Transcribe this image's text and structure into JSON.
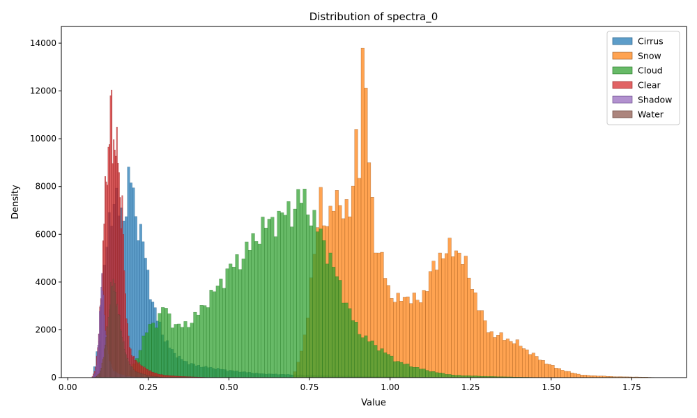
{
  "chart_data": {
    "type": "histogram",
    "title": "Distribution of spectra_0",
    "xlabel": "Value",
    "ylabel": "Density",
    "xlim": [
      -0.02,
      1.92
    ],
    "ylim": [
      0,
      14700
    ],
    "xticks": [
      0.0,
      0.25,
      0.5,
      0.75,
      1.0,
      1.25,
      1.5,
      1.75
    ],
    "xtick_labels": [
      "0.00",
      "0.25",
      "0.50",
      "0.75",
      "1.00",
      "1.25",
      "1.50",
      "1.75"
    ],
    "yticks": [
      0,
      2000,
      4000,
      6000,
      8000,
      10000,
      12000,
      14000
    ],
    "ytick_labels": [
      "0",
      "2000",
      "4000",
      "6000",
      "8000",
      "10000",
      "12000",
      "14000"
    ],
    "grid": false,
    "legend_position": "top-right",
    "series": [
      {
        "name": "Cirrus",
        "color": "#1f77b4",
        "edge": "#174f7a",
        "bin_width": 0.0075,
        "points": [
          [
            0.08,
            150
          ],
          [
            0.1,
            1800
          ],
          [
            0.115,
            4800
          ],
          [
            0.13,
            6800
          ],
          [
            0.15,
            7400
          ],
          [
            0.165,
            6800
          ],
          [
            0.18,
            7000
          ],
          [
            0.19,
            8200
          ],
          [
            0.2,
            8400
          ],
          [
            0.21,
            6800
          ],
          [
            0.22,
            6300
          ],
          [
            0.23,
            5800
          ],
          [
            0.24,
            5200
          ],
          [
            0.25,
            4200
          ],
          [
            0.26,
            3300
          ],
          [
            0.27,
            2800
          ],
          [
            0.28,
            2400
          ],
          [
            0.29,
            2100
          ],
          [
            0.3,
            1600
          ],
          [
            0.32,
            1200
          ],
          [
            0.34,
            900
          ],
          [
            0.36,
            700
          ],
          [
            0.4,
            500
          ],
          [
            0.5,
            300
          ],
          [
            0.6,
            160
          ],
          [
            0.8,
            80
          ],
          [
            1.0,
            40
          ],
          [
            1.2,
            10
          ],
          [
            1.3,
            0
          ]
        ]
      },
      {
        "name": "Snow",
        "color": "#ff7f0e",
        "edge": "#8a4a12",
        "bin_width": 0.01,
        "points": [
          [
            0.7,
            0
          ],
          [
            0.72,
            900
          ],
          [
            0.74,
            2000
          ],
          [
            0.76,
            4500
          ],
          [
            0.77,
            5600
          ],
          [
            0.78,
            8200
          ],
          [
            0.79,
            7200
          ],
          [
            0.8,
            6000
          ],
          [
            0.81,
            6300
          ],
          [
            0.82,
            7000
          ],
          [
            0.83,
            8300
          ],
          [
            0.84,
            7300
          ],
          [
            0.85,
            7200
          ],
          [
            0.86,
            6400
          ],
          [
            0.87,
            7100
          ],
          [
            0.88,
            7100
          ],
          [
            0.89,
            9600
          ],
          [
            0.9,
            10700
          ],
          [
            0.905,
            8800
          ],
          [
            0.91,
            12000
          ],
          [
            0.92,
            13300
          ],
          [
            0.93,
            10700
          ],
          [
            0.94,
            8800
          ],
          [
            0.95,
            5800
          ],
          [
            0.96,
            5200
          ],
          [
            0.97,
            4800
          ],
          [
            0.98,
            5000
          ],
          [
            0.99,
            4100
          ],
          [
            1.0,
            3500
          ],
          [
            1.02,
            3100
          ],
          [
            1.04,
            3500
          ],
          [
            1.06,
            3300
          ],
          [
            1.08,
            3200
          ],
          [
            1.1,
            3400
          ],
          [
            1.12,
            4000
          ],
          [
            1.14,
            4800
          ],
          [
            1.16,
            5200
          ],
          [
            1.18,
            5200
          ],
          [
            1.19,
            5400
          ],
          [
            1.2,
            5400
          ],
          [
            1.22,
            5200
          ],
          [
            1.24,
            4400
          ],
          [
            1.26,
            3700
          ],
          [
            1.28,
            2800
          ],
          [
            1.3,
            2100
          ],
          [
            1.32,
            1800
          ],
          [
            1.35,
            1700
          ],
          [
            1.4,
            1400
          ],
          [
            1.45,
            900
          ],
          [
            1.5,
            500
          ],
          [
            1.55,
            250
          ],
          [
            1.6,
            100
          ],
          [
            1.7,
            40
          ],
          [
            1.8,
            20
          ],
          [
            1.83,
            0
          ]
        ]
      },
      {
        "name": "Cloud",
        "color": "#2ca02c",
        "edge": "#1c6e1c",
        "bin_width": 0.01,
        "points": [
          [
            0.18,
            0
          ],
          [
            0.2,
            400
          ],
          [
            0.22,
            1000
          ],
          [
            0.24,
            1800
          ],
          [
            0.26,
            2300
          ],
          [
            0.28,
            2300
          ],
          [
            0.3,
            3100
          ],
          [
            0.32,
            2400
          ],
          [
            0.34,
            2100
          ],
          [
            0.36,
            2200
          ],
          [
            0.38,
            2300
          ],
          [
            0.4,
            2600
          ],
          [
            0.42,
            3000
          ],
          [
            0.44,
            3300
          ],
          [
            0.46,
            3700
          ],
          [
            0.48,
            4100
          ],
          [
            0.5,
            4500
          ],
          [
            0.52,
            4800
          ],
          [
            0.54,
            5000
          ],
          [
            0.56,
            5400
          ],
          [
            0.58,
            5800
          ],
          [
            0.6,
            6200
          ],
          [
            0.62,
            6400
          ],
          [
            0.64,
            6600
          ],
          [
            0.66,
            6700
          ],
          [
            0.68,
            6900
          ],
          [
            0.7,
            7000
          ],
          [
            0.72,
            7600
          ],
          [
            0.74,
            7300
          ],
          [
            0.76,
            6700
          ],
          [
            0.78,
            6100
          ],
          [
            0.8,
            5500
          ],
          [
            0.82,
            4800
          ],
          [
            0.84,
            4000
          ],
          [
            0.86,
            3300
          ],
          [
            0.88,
            2600
          ],
          [
            0.9,
            2000
          ],
          [
            0.92,
            1700
          ],
          [
            0.94,
            1500
          ],
          [
            0.96,
            1300
          ],
          [
            0.98,
            1100
          ],
          [
            1.0,
            900
          ],
          [
            1.02,
            700
          ],
          [
            1.05,
            550
          ],
          [
            1.1,
            350
          ],
          [
            1.15,
            200
          ],
          [
            1.2,
            100
          ],
          [
            1.3,
            50
          ],
          [
            1.4,
            20
          ],
          [
            1.5,
            0
          ]
        ]
      },
      {
        "name": "Clear",
        "color": "#d62728",
        "edge": "#8e1a1b",
        "bin_width": 0.0033,
        "points": [
          [
            0.075,
            0
          ],
          [
            0.085,
            300
          ],
          [
            0.095,
            1500
          ],
          [
            0.105,
            4000
          ],
          [
            0.115,
            7500
          ],
          [
            0.125,
            9000
          ],
          [
            0.13,
            10500
          ],
          [
            0.135,
            11800
          ],
          [
            0.14,
            9500
          ],
          [
            0.145,
            10000
          ],
          [
            0.15,
            9200
          ],
          [
            0.155,
            9800
          ],
          [
            0.16,
            8500
          ],
          [
            0.165,
            6500
          ],
          [
            0.17,
            7000
          ],
          [
            0.175,
            5000
          ],
          [
            0.18,
            3000
          ],
          [
            0.185,
            2200
          ],
          [
            0.19,
            1500
          ],
          [
            0.2,
            900
          ],
          [
            0.22,
            600
          ],
          [
            0.24,
            400
          ],
          [
            0.26,
            250
          ],
          [
            0.28,
            150
          ],
          [
            0.3,
            100
          ],
          [
            0.35,
            50
          ],
          [
            0.45,
            0
          ]
        ]
      },
      {
        "name": "Shadow",
        "color": "#9467bd",
        "edge": "#5e3f80",
        "bin_width": 0.0025,
        "points": [
          [
            0.075,
            0
          ],
          [
            0.085,
            200
          ],
          [
            0.09,
            700
          ],
          [
            0.095,
            1500
          ],
          [
            0.1,
            3000
          ],
          [
            0.105,
            4200
          ],
          [
            0.11,
            3600
          ],
          [
            0.115,
            2400
          ],
          [
            0.12,
            1400
          ],
          [
            0.13,
            700
          ],
          [
            0.14,
            300
          ],
          [
            0.16,
            150
          ],
          [
            0.18,
            80
          ],
          [
            0.2,
            40
          ],
          [
            0.25,
            0
          ]
        ]
      },
      {
        "name": "Water",
        "color": "#8c564b",
        "edge": "#5a372f",
        "bin_width": 0.0025,
        "points": [
          [
            0.085,
            0
          ],
          [
            0.1,
            200
          ],
          [
            0.11,
            800
          ],
          [
            0.12,
            1800
          ],
          [
            0.13,
            3000
          ],
          [
            0.135,
            3800
          ],
          [
            0.14,
            4100
          ],
          [
            0.145,
            3800
          ],
          [
            0.15,
            3300
          ],
          [
            0.16,
            2500
          ],
          [
            0.17,
            1600
          ],
          [
            0.18,
            1000
          ],
          [
            0.19,
            600
          ],
          [
            0.21,
            250
          ],
          [
            0.25,
            80
          ],
          [
            0.3,
            0
          ]
        ]
      }
    ]
  }
}
